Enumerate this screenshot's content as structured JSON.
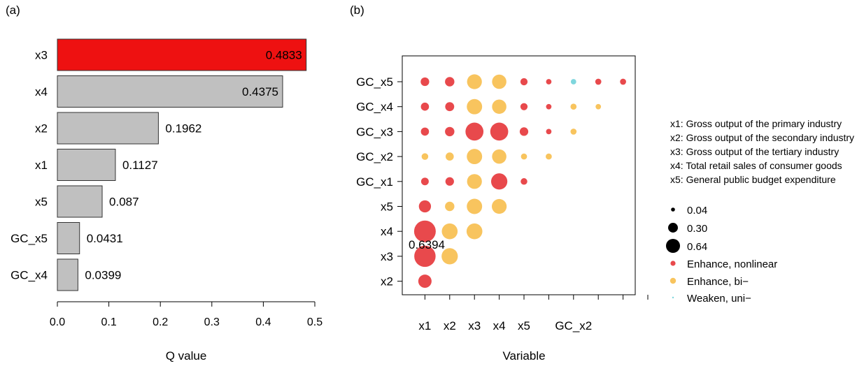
{
  "chart_data": [
    {
      "panel": "(a)",
      "type": "bar",
      "orientation": "horizontal",
      "categories": [
        "x3",
        "x4",
        "x2",
        "x1",
        "x5",
        "GC_x5",
        "GC_x4"
      ],
      "values": [
        0.4833,
        0.4375,
        0.1962,
        0.1127,
        0.087,
        0.0431,
        0.0399
      ],
      "value_labels": [
        "0.4833",
        "0.4375",
        "0.1962",
        "0.1127",
        "0.087",
        "0.0431",
        "0.0399"
      ],
      "highlight_index": 0,
      "bar_colors": {
        "highlight": "#ee1111",
        "default": "#c0c0c0"
      },
      "xlabel": "Q value",
      "xlim": [
        0,
        0.5
      ],
      "xticks": [
        "0.0",
        "0.1",
        "0.2",
        "0.3",
        "0.4",
        "0.5"
      ]
    },
    {
      "panel": "(b)",
      "type": "scatter",
      "xlabel": "Variable",
      "x_categories": [
        "x1",
        "x2",
        "x3",
        "x4",
        "x5",
        "GC_x1",
        "GC_x2",
        "GC_x3",
        "GC_x4",
        "GC_x5"
      ],
      "x_tick_labels": [
        "x1",
        "x2",
        "x3",
        "x4",
        "x5",
        "",
        "GC_x2",
        "",
        "",
        ""
      ],
      "y_categories": [
        "GC_x5",
        "GC_x4",
        "GC_x3",
        "GC_x2",
        "GC_x1",
        "x5",
        "x4",
        "x3",
        "x2"
      ],
      "annotation": {
        "text": "0.6394",
        "row": "x4",
        "col": "x1"
      },
      "points": [
        {
          "row": "GC_x5",
          "col": "x1",
          "value": 0.1,
          "type": "Enhance, nonlinear"
        },
        {
          "row": "GC_x5",
          "col": "x2",
          "value": 0.12,
          "type": "Enhance, nonlinear"
        },
        {
          "row": "GC_x5",
          "col": "x3",
          "value": 0.3,
          "type": "Enhance, bi−"
        },
        {
          "row": "GC_x5",
          "col": "x4",
          "value": 0.28,
          "type": "Enhance, bi−"
        },
        {
          "row": "GC_x5",
          "col": "x5",
          "value": 0.07,
          "type": "Enhance, nonlinear"
        },
        {
          "row": "GC_x5",
          "col": "GC_x1",
          "value": 0.04,
          "type": "Enhance, nonlinear"
        },
        {
          "row": "GC_x5",
          "col": "GC_x2",
          "value": 0.04,
          "type": "Weaken, uni−"
        },
        {
          "row": "GC_x5",
          "col": "GC_x3",
          "value": 0.05,
          "type": "Enhance, nonlinear"
        },
        {
          "row": "GC_x5",
          "col": "GC_x4",
          "value": 0.05,
          "type": "Enhance, nonlinear"
        },
        {
          "row": "GC_x4",
          "col": "x1",
          "value": 0.09,
          "type": "Enhance, nonlinear"
        },
        {
          "row": "GC_x4",
          "col": "x2",
          "value": 0.11,
          "type": "Enhance, nonlinear"
        },
        {
          "row": "GC_x4",
          "col": "x3",
          "value": 0.32,
          "type": "Enhance, bi−"
        },
        {
          "row": "GC_x4",
          "col": "x4",
          "value": 0.28,
          "type": "Enhance, bi−"
        },
        {
          "row": "GC_x4",
          "col": "x5",
          "value": 0.07,
          "type": "Enhance, nonlinear"
        },
        {
          "row": "GC_x4",
          "col": "GC_x1",
          "value": 0.04,
          "type": "Enhance, nonlinear"
        },
        {
          "row": "GC_x4",
          "col": "GC_x2",
          "value": 0.05,
          "type": "Enhance, bi−"
        },
        {
          "row": "GC_x4",
          "col": "GC_x3",
          "value": 0.04,
          "type": "Enhance, bi−"
        },
        {
          "row": "GC_x3",
          "col": "x1",
          "value": 0.09,
          "type": "Enhance, nonlinear"
        },
        {
          "row": "GC_x3",
          "col": "x2",
          "value": 0.12,
          "type": "Enhance, nonlinear"
        },
        {
          "row": "GC_x3",
          "col": "x3",
          "value": 0.44,
          "type": "Enhance, nonlinear"
        },
        {
          "row": "GC_x3",
          "col": "x4",
          "value": 0.44,
          "type": "Enhance, nonlinear"
        },
        {
          "row": "GC_x3",
          "col": "x5",
          "value": 0.1,
          "type": "Enhance, nonlinear"
        },
        {
          "row": "GC_x3",
          "col": "GC_x1",
          "value": 0.04,
          "type": "Enhance, nonlinear"
        },
        {
          "row": "GC_x3",
          "col": "GC_x2",
          "value": 0.05,
          "type": "Enhance, bi−"
        },
        {
          "row": "GC_x2",
          "col": "x1",
          "value": 0.06,
          "type": "Enhance, bi−"
        },
        {
          "row": "GC_x2",
          "col": "x2",
          "value": 0.09,
          "type": "Enhance, bi−"
        },
        {
          "row": "GC_x2",
          "col": "x3",
          "value": 0.32,
          "type": "Enhance, bi−"
        },
        {
          "row": "GC_x2",
          "col": "x4",
          "value": 0.28,
          "type": "Enhance, bi−"
        },
        {
          "row": "GC_x2",
          "col": "x5",
          "value": 0.05,
          "type": "Enhance, bi−"
        },
        {
          "row": "GC_x2",
          "col": "GC_x1",
          "value": 0.05,
          "type": "Enhance, bi−"
        },
        {
          "row": "GC_x1",
          "col": "x1",
          "value": 0.08,
          "type": "Enhance, nonlinear"
        },
        {
          "row": "GC_x1",
          "col": "x2",
          "value": 0.1,
          "type": "Enhance, nonlinear"
        },
        {
          "row": "GC_x1",
          "col": "x3",
          "value": 0.3,
          "type": "Enhance, bi−"
        },
        {
          "row": "GC_x1",
          "col": "x4",
          "value": 0.36,
          "type": "Enhance, nonlinear"
        },
        {
          "row": "GC_x1",
          "col": "x5",
          "value": 0.06,
          "type": "Enhance, nonlinear"
        },
        {
          "row": "x5",
          "col": "x1",
          "value": 0.2,
          "type": "Enhance, nonlinear"
        },
        {
          "row": "x5",
          "col": "x2",
          "value": 0.12,
          "type": "Enhance, bi−"
        },
        {
          "row": "x5",
          "col": "x3",
          "value": 0.32,
          "type": "Enhance, bi−"
        },
        {
          "row": "x5",
          "col": "x4",
          "value": 0.3,
          "type": "Enhance, bi−"
        },
        {
          "row": "x4",
          "col": "x1",
          "value": 0.6394,
          "type": "Enhance, nonlinear"
        },
        {
          "row": "x4",
          "col": "x2",
          "value": 0.34,
          "type": "Enhance, bi−"
        },
        {
          "row": "x4",
          "col": "x3",
          "value": 0.34,
          "type": "Enhance, bi−"
        },
        {
          "row": "x3",
          "col": "x1",
          "value": 0.62,
          "type": "Enhance, nonlinear"
        },
        {
          "row": "x3",
          "col": "x2",
          "value": 0.36,
          "type": "Enhance, bi−"
        },
        {
          "row": "x2",
          "col": "x1",
          "value": 0.24,
          "type": "Enhance, nonlinear"
        }
      ],
      "variable_legend": [
        "x1: Gross output of the primary industry",
        "x2: Gross output of the secondary industry",
        "x3: Gross output of the tertiary industry",
        "x4: Total retail sales of consumer goods",
        "x5: General public budget expenditure"
      ],
      "size_legend": [
        {
          "label": "0.04",
          "value": 0.04
        },
        {
          "label": "0.30",
          "value": 0.3
        },
        {
          "label": "0.64",
          "value": 0.64
        }
      ],
      "type_legend": [
        {
          "label": "Enhance, nonlinear",
          "color": "#e8494c"
        },
        {
          "label": "Enhance, bi−",
          "color": "#f8c45e"
        },
        {
          "label": "Weaken, uni−",
          "color": "#7fd6dd"
        }
      ],
      "size_legend_color": "#000000"
    }
  ]
}
